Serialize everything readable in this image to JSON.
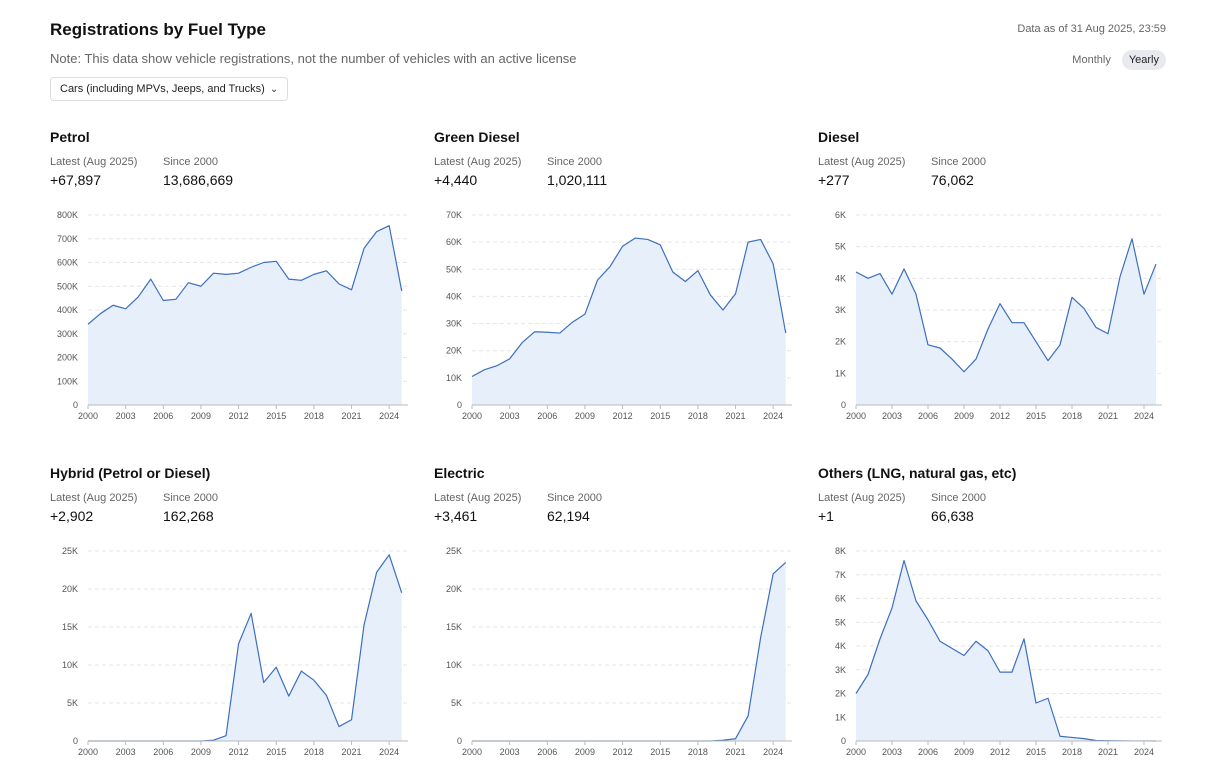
{
  "header": {
    "title": "Registrations by Fuel Type",
    "note": "Note: This data show vehicle registrations, not the number of vehicles with an active license",
    "as_of": "Data as of 31 Aug 2025, 23:59",
    "dropdown": {
      "selected": "Cars (including MPVs, Jeeps, and Trucks)",
      "icon": "chevron-down-icon"
    },
    "toggle": {
      "monthly": "Monthly",
      "yearly": "Yearly",
      "active": "yearly"
    }
  },
  "colors": {
    "line": "#3b6fc0",
    "fill": "#e7effb",
    "grid": "#e6e6e6",
    "axis": "#bbbbbb"
  },
  "stat_labels": {
    "latest": "Latest (Aug 2025)",
    "since": "Since 2000"
  },
  "panels": [
    {
      "title": "Petrol",
      "latest": "+67,897",
      "since": "13,686,669"
    },
    {
      "title": "Green Diesel",
      "latest": "+4,440",
      "since": "1,020,111"
    },
    {
      "title": "Diesel",
      "latest": "+277",
      "since": "76,062"
    },
    {
      "title": "Hybrid (Petrol or Diesel)",
      "latest": "+2,902",
      "since": "162,268"
    },
    {
      "title": "Electric",
      "latest": "+3,461",
      "since": "62,194"
    },
    {
      "title": "Others (LNG, natural gas, etc)",
      "latest": "+1",
      "since": "66,638"
    }
  ],
  "chart_data": [
    {
      "type": "area",
      "title": "Petrol",
      "x": [
        2000,
        2001,
        2002,
        2003,
        2004,
        2005,
        2006,
        2007,
        2008,
        2009,
        2010,
        2011,
        2012,
        2013,
        2014,
        2015,
        2016,
        2017,
        2018,
        2019,
        2020,
        2021,
        2022,
        2023,
        2024,
        2025
      ],
      "x_ticks": [
        "2000",
        "2003",
        "2006",
        "2009",
        "2012",
        "2015",
        "2018",
        "2021",
        "2024"
      ],
      "y": [
        340000,
        385000,
        420000,
        405000,
        455000,
        530000,
        440000,
        445000,
        515000,
        500000,
        555000,
        550000,
        555000,
        580000,
        600000,
        605000,
        530000,
        525000,
        550000,
        565000,
        510000,
        485000,
        660000,
        730000,
        755000,
        480000
      ],
      "y_ticks": [
        "0",
        "100K",
        "200K",
        "300K",
        "400K",
        "500K",
        "600K",
        "700K",
        "800K"
      ],
      "ylim": [
        0,
        800000
      ]
    },
    {
      "type": "area",
      "title": "Green Diesel",
      "x": [
        2000,
        2001,
        2002,
        2003,
        2004,
        2005,
        2006,
        2007,
        2008,
        2009,
        2010,
        2011,
        2012,
        2013,
        2014,
        2015,
        2016,
        2017,
        2018,
        2019,
        2020,
        2021,
        2022,
        2023,
        2024,
        2025
      ],
      "x_ticks": [
        "2000",
        "2003",
        "2006",
        "2009",
        "2012",
        "2015",
        "2018",
        "2021",
        "2024"
      ],
      "y": [
        10500,
        13000,
        14500,
        17000,
        23000,
        27000,
        26800,
        26500,
        30500,
        33500,
        46000,
        51000,
        58500,
        61500,
        61000,
        59000,
        49000,
        45500,
        49500,
        40500,
        35000,
        41000,
        60000,
        61000,
        52000,
        26500
      ],
      "y_ticks": [
        "0",
        "10K",
        "20K",
        "30K",
        "40K",
        "50K",
        "60K",
        "70K"
      ],
      "ylim": [
        0,
        70000
      ]
    },
    {
      "type": "area",
      "title": "Diesel",
      "x": [
        2000,
        2001,
        2002,
        2003,
        2004,
        2005,
        2006,
        2007,
        2008,
        2009,
        2010,
        2011,
        2012,
        2013,
        2014,
        2015,
        2016,
        2017,
        2018,
        2019,
        2020,
        2021,
        2022,
        2023,
        2024,
        2025
      ],
      "x_ticks": [
        "2000",
        "2003",
        "2006",
        "2009",
        "2012",
        "2015",
        "2018",
        "2021",
        "2024"
      ],
      "y": [
        4200,
        4000,
        4150,
        3500,
        4300,
        3500,
        1900,
        1800,
        1450,
        1050,
        1450,
        2400,
        3200,
        2600,
        2600,
        2000,
        1400,
        1900,
        3400,
        3050,
        2450,
        2250,
        4050,
        5250,
        3500,
        4450
      ],
      "y_ticks": [
        "0",
        "1K",
        "2K",
        "3K",
        "4K",
        "5K",
        "6K"
      ],
      "ylim": [
        0,
        6000
      ]
    },
    {
      "type": "area",
      "title": "Hybrid (Petrol or Diesel)",
      "x": [
        2000,
        2001,
        2002,
        2003,
        2004,
        2005,
        2006,
        2007,
        2008,
        2009,
        2010,
        2011,
        2012,
        2013,
        2014,
        2015,
        2016,
        2017,
        2018,
        2019,
        2020,
        2021,
        2022,
        2023,
        2024,
        2025
      ],
      "x_ticks": [
        "2000",
        "2003",
        "2006",
        "2009",
        "2012",
        "2015",
        "2018",
        "2021",
        "2024"
      ],
      "y": [
        0,
        0,
        0,
        0,
        0,
        0,
        0,
        0,
        0,
        0,
        100,
        700,
        12800,
        16800,
        7700,
        9700,
        5900,
        9200,
        8000,
        6000,
        1900,
        2800,
        15300,
        22200,
        24500,
        19500
      ],
      "y_ticks": [
        "0",
        "5K",
        "10K",
        "15K",
        "20K",
        "25K"
      ],
      "ylim": [
        0,
        25000
      ]
    },
    {
      "type": "area",
      "title": "Electric",
      "x": [
        2000,
        2001,
        2002,
        2003,
        2004,
        2005,
        2006,
        2007,
        2008,
        2009,
        2010,
        2011,
        2012,
        2013,
        2014,
        2015,
        2016,
        2017,
        2018,
        2019,
        2020,
        2021,
        2022,
        2023,
        2024,
        2025
      ],
      "x_ticks": [
        "2000",
        "2003",
        "2006",
        "2009",
        "2012",
        "2015",
        "2018",
        "2021",
        "2024"
      ],
      "y": [
        0,
        0,
        0,
        0,
        0,
        0,
        0,
        0,
        0,
        0,
        0,
        0,
        0,
        0,
        0,
        0,
        0,
        0,
        0,
        0,
        100,
        300,
        3300,
        13600,
        22000,
        23500
      ],
      "y_ticks": [
        "0",
        "5K",
        "10K",
        "15K",
        "20K",
        "25K"
      ],
      "ylim": [
        0,
        25000
      ]
    },
    {
      "type": "area",
      "title": "Others (LNG, natural gas, etc)",
      "x": [
        2000,
        2001,
        2002,
        2003,
        2004,
        2005,
        2006,
        2007,
        2008,
        2009,
        2010,
        2011,
        2012,
        2013,
        2014,
        2015,
        2016,
        2017,
        2018,
        2019,
        2020,
        2021,
        2022,
        2023,
        2024,
        2025
      ],
      "x_ticks": [
        "2000",
        "2003",
        "2006",
        "2009",
        "2012",
        "2015",
        "2018",
        "2021",
        "2024"
      ],
      "y": [
        2000,
        2800,
        4300,
        5600,
        7600,
        5900,
        5100,
        4200,
        3900,
        3600,
        4200,
        3800,
        2900,
        2900,
        4300,
        1600,
        1800,
        200,
        150,
        100,
        20,
        10,
        5,
        3,
        2,
        1
      ],
      "y_ticks": [
        "0",
        "1K",
        "2K",
        "3K",
        "4K",
        "5K",
        "6K",
        "7K",
        "8K"
      ],
      "ylim": [
        0,
        8000
      ]
    }
  ]
}
